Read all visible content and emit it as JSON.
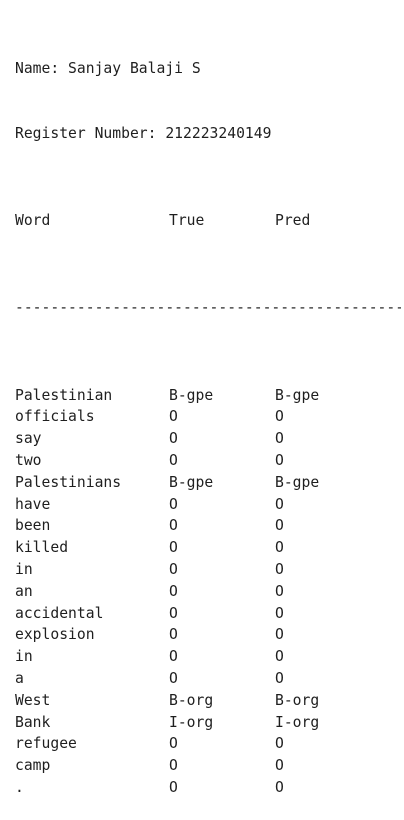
{
  "header": {
    "name_line": "Name: Sanjay Balaji S",
    "register_line": "Register Number: 212223240149"
  },
  "table": {
    "columns": [
      "Word",
      "True",
      "Pred"
    ],
    "separator": "----------------------------------------------",
    "rows": [
      {
        "word": "Palestinian",
        "true": "B-gpe",
        "pred": "B-gpe"
      },
      {
        "word": "officials",
        "true": "O",
        "pred": "O"
      },
      {
        "word": "say",
        "true": "O",
        "pred": "O"
      },
      {
        "word": "two",
        "true": "O",
        "pred": "O"
      },
      {
        "word": "Palestinians",
        "true": "B-gpe",
        "pred": "B-gpe"
      },
      {
        "word": "have",
        "true": "O",
        "pred": "O"
      },
      {
        "word": "been",
        "true": "O",
        "pred": "O"
      },
      {
        "word": "killed",
        "true": "O",
        "pred": "O"
      },
      {
        "word": "in",
        "true": "O",
        "pred": "O"
      },
      {
        "word": "an",
        "true": "O",
        "pred": "O"
      },
      {
        "word": "accidental",
        "true": "O",
        "pred": "O"
      },
      {
        "word": "explosion",
        "true": "O",
        "pred": "O"
      },
      {
        "word": "in",
        "true": "O",
        "pred": "O"
      },
      {
        "word": "a",
        "true": "O",
        "pred": "O"
      },
      {
        "word": "West",
        "true": "B-org",
        "pred": "B-org"
      },
      {
        "word": "Bank",
        "true": "I-org",
        "pred": "I-org"
      },
      {
        "word": "refugee",
        "true": "O",
        "pred": "O"
      },
      {
        "word": "camp",
        "true": "O",
        "pred": "O"
      },
      {
        "word": ".",
        "true": "O",
        "pred": "O"
      }
    ]
  }
}
